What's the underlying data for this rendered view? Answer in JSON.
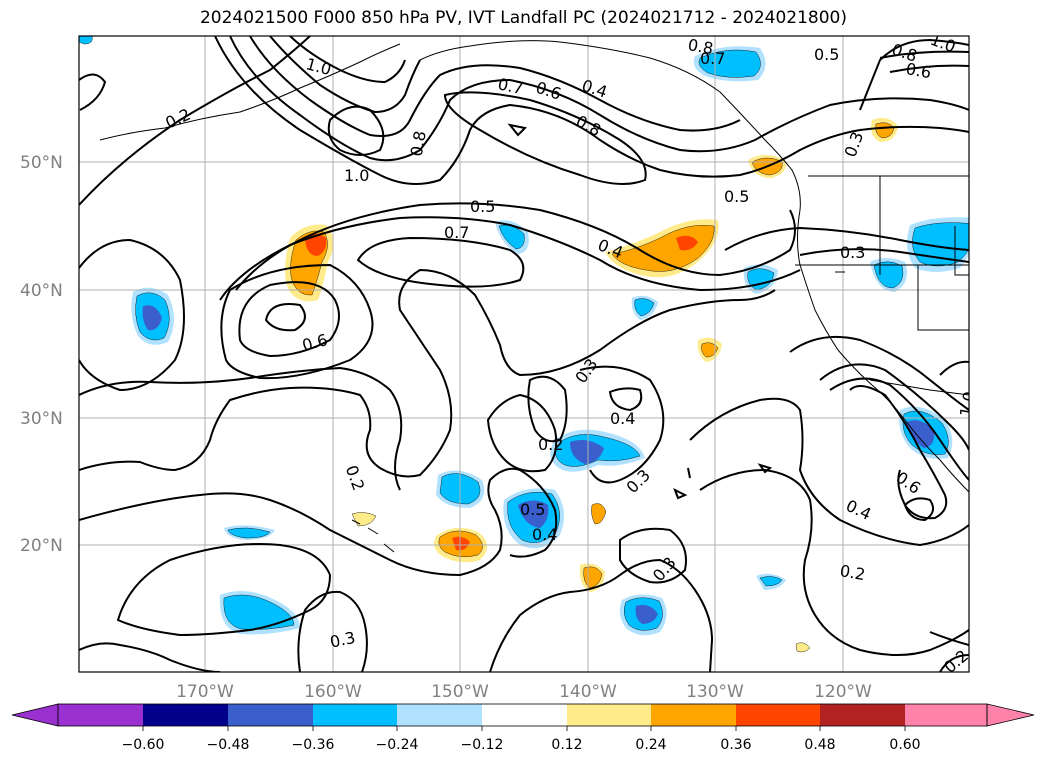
{
  "title": "2024021500 F000 850 hPa PV, IVT Landfall PC (2024021712 - 2024021800)",
  "map": {
    "lat_labels": [
      "50°N",
      "40°N",
      "30°N",
      "20°N"
    ],
    "lon_labels": [
      "170°W",
      "160°W",
      "150°W",
      "140°W",
      "130°W",
      "120°W"
    ],
    "contour_labels": [
      {
        "text": "1.0"
      },
      {
        "text": "0.2"
      },
      {
        "text": "0.8"
      },
      {
        "text": "1.0"
      },
      {
        "text": "0.7"
      },
      {
        "text": "0.6"
      },
      {
        "text": "0.4"
      },
      {
        "text": "0.8"
      },
      {
        "text": "0.8"
      },
      {
        "text": "0.7"
      },
      {
        "text": "0.5"
      },
      {
        "text": "0.8"
      },
      {
        "text": "0.6"
      },
      {
        "text": "1.0"
      },
      {
        "text": "0.3"
      },
      {
        "text": "0.5"
      },
      {
        "text": "0.5"
      },
      {
        "text": "0.7"
      },
      {
        "text": "0.4"
      },
      {
        "text": "0.3"
      },
      {
        "text": "0.6"
      },
      {
        "text": "0.3"
      },
      {
        "text": "0.4"
      },
      {
        "text": "0.2"
      },
      {
        "text": "0.3"
      },
      {
        "text": "0.2"
      },
      {
        "text": "0.5"
      },
      {
        "text": "0.4"
      },
      {
        "text": "0.3"
      },
      {
        "text": "0.6"
      },
      {
        "text": "0.4"
      },
      {
        "text": "0.2"
      },
      {
        "text": "0.3"
      },
      {
        "text": "0.2"
      },
      {
        "text": "1.0"
      }
    ]
  },
  "colorbar": {
    "ticks": [
      "−0.60",
      "−0.48",
      "−0.36",
      "−0.24",
      "−0.12",
      "0.12",
      "0.24",
      "0.36",
      "0.48",
      "0.60"
    ],
    "colors": [
      "#9b30d0",
      "#00008b",
      "#3a5fcd",
      "#00bfff",
      "#b0e2ff",
      "#ffffff",
      "#ffeb8a",
      "#ffa500",
      "#ff4500",
      "#b22222",
      "#ff82ab"
    ]
  }
}
